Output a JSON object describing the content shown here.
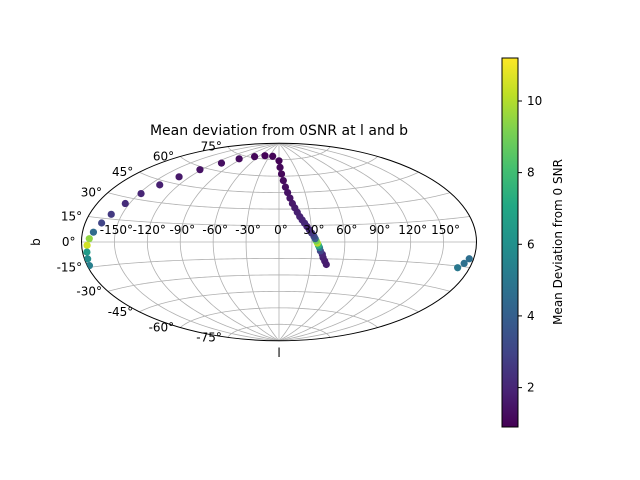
{
  "chart_data": {
    "type": "scatter",
    "projection": "aitoff",
    "title": "Mean deviation from 0SNR at l and b",
    "xlabel": "l",
    "ylabel": "b",
    "grid": true,
    "x_tick_labels": [
      "-150°",
      "-120°",
      "-90°",
      "-60°",
      "-30°",
      "0°",
      "30°",
      "60°",
      "90°",
      "120°",
      "150°"
    ],
    "x_tick_values": [
      -150,
      -120,
      -90,
      -60,
      -30,
      0,
      30,
      60,
      90,
      120,
      150
    ],
    "y_tick_labels": [
      "-75°",
      "-60°",
      "-45°",
      "-30°",
      "-15°",
      "0°",
      "15°",
      "30°",
      "45°",
      "60°",
      "75°"
    ],
    "y_tick_values": [
      -75,
      -60,
      -45,
      -30,
      -15,
      0,
      15,
      30,
      45,
      60,
      75
    ],
    "colorbar": {
      "label": "Mean Deviation from 0 SNR",
      "colormap": "viridis",
      "range": [
        0.9,
        11.2
      ],
      "tick_values": [
        2,
        4,
        6,
        8,
        10
      ],
      "tick_labels": [
        "2",
        "4",
        "6",
        "8",
        "10"
      ]
    },
    "series": [
      {
        "points": [
          {
            "l": 45,
            "b": -20,
            "value": 1.7
          },
          {
            "l": 43,
            "b": -17,
            "value": 1.7
          },
          {
            "l": 41,
            "b": -14,
            "value": 1.8
          },
          {
            "l": 40,
            "b": -11,
            "value": 2.0
          },
          {
            "l": 38,
            "b": -8,
            "value": 3.0
          },
          {
            "l": 37,
            "b": -5,
            "value": 5.2
          },
          {
            "l": 36,
            "b": -3,
            "value": 7.5
          },
          {
            "l": 35,
            "b": -1,
            "value": 10.0
          },
          {
            "l": 34,
            "b": 1,
            "value": 9.0
          },
          {
            "l": 33,
            "b": 3,
            "value": 4.2
          },
          {
            "l": 32,
            "b": 5,
            "value": 3.2
          },
          {
            "l": 30,
            "b": 8,
            "value": 2.6
          },
          {
            "l": 28,
            "b": 11,
            "value": 2.2
          },
          {
            "l": 26,
            "b": 14,
            "value": 2.0
          },
          {
            "l": 24,
            "b": 17,
            "value": 2.1
          },
          {
            "l": 22,
            "b": 20,
            "value": 2.0
          },
          {
            "l": 20,
            "b": 23,
            "value": 1.9
          },
          {
            "l": 18,
            "b": 27,
            "value": 1.8
          },
          {
            "l": 16,
            "b": 31,
            "value": 1.7
          },
          {
            "l": 14,
            "b": 35,
            "value": 1.6
          },
          {
            "l": 12,
            "b": 40,
            "value": 1.5
          },
          {
            "l": 10,
            "b": 45,
            "value": 1.4
          },
          {
            "l": 8,
            "b": 50,
            "value": 1.3
          },
          {
            "l": 6,
            "b": 56,
            "value": 1.2
          },
          {
            "l": 4,
            "b": 62,
            "value": 1.1
          },
          {
            "l": 2,
            "b": 68,
            "value": 1.1
          },
          {
            "l": 0,
            "b": 74,
            "value": 1.0
          },
          {
            "l": -20,
            "b": 78,
            "value": 1.0
          },
          {
            "l": -45,
            "b": 78,
            "value": 1.0
          },
          {
            "l": -70,
            "b": 76,
            "value": 1.1
          },
          {
            "l": -95,
            "b": 72,
            "value": 1.2
          },
          {
            "l": -110,
            "b": 66,
            "value": 1.3
          },
          {
            "l": -122,
            "b": 58,
            "value": 1.4
          },
          {
            "l": -132,
            "b": 50,
            "value": 1.6
          },
          {
            "l": -140,
            "b": 42,
            "value": 1.8
          },
          {
            "l": -148,
            "b": 34,
            "value": 2.0
          },
          {
            "l": -154,
            "b": 26,
            "value": 2.2
          },
          {
            "l": -160,
            "b": 18,
            "value": 2.6
          },
          {
            "l": -165,
            "b": 12,
            "value": 3.0
          },
          {
            "l": -170,
            "b": 6,
            "value": 4.5
          },
          {
            "l": -173,
            "b": 2,
            "value": 9.5
          },
          {
            "l": -175,
            "b": -2,
            "value": 10.5
          },
          {
            "l": -176,
            "b": -6,
            "value": 6.5
          },
          {
            "l": -177,
            "b": -10,
            "value": 5.8
          },
          {
            "l": -178,
            "b": -14,
            "value": 5.3
          },
          {
            "l": 176,
            "b": -10,
            "value": 4.6
          },
          {
            "l": 173,
            "b": -13,
            "value": 4.7
          },
          {
            "l": 169,
            "b": -16,
            "value": 5.0
          }
        ]
      }
    ]
  }
}
